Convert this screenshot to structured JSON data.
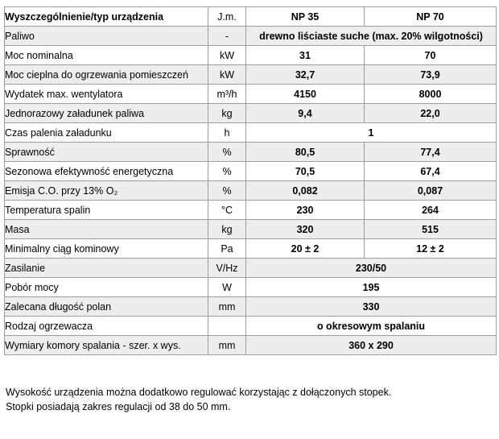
{
  "table": {
    "header": {
      "label": "Wyszczególnienie/typ urządzenia",
      "unit": "J.m.",
      "model1": "NP 35",
      "model2": "NP 70"
    },
    "rows": [
      {
        "label": "Paliwo",
        "unit": "-",
        "span": "drewno liściaste suche (max. 20% wilgotności)"
      },
      {
        "label": "Moc nominalna",
        "unit": "kW",
        "np35": "31",
        "np70": "70"
      },
      {
        "label": "Moc cieplna do ogrzewania pomieszczeń",
        "unit": "kW",
        "np35": "32,7",
        "np70": "73,9"
      },
      {
        "label": "Wydatek max. wentylatora",
        "unit": "m³/h",
        "np35": "4150",
        "np70": "8000"
      },
      {
        "label": "Jednorazowy załadunek paliwa",
        "unit": "kg",
        "np35": "9,4",
        "np70": "22,0"
      },
      {
        "label": "Czas palenia załadunku",
        "unit": "h",
        "span": "1"
      },
      {
        "label": "Sprawność",
        "unit": "%",
        "np35": "80,5",
        "np70": "77,4"
      },
      {
        "label": "Sezonowa efektywność energetyczna",
        "unit": "%",
        "np35": "70,5",
        "np70": "67,4"
      },
      {
        "label": "Emisja C.O. przy 13% O₂",
        "unit": "%",
        "np35": "0,082",
        "np70": "0,087"
      },
      {
        "label": "Temperatura spalin",
        "unit": "°C",
        "np35": "230",
        "np70": "264"
      },
      {
        "label": "Masa",
        "unit": "kg",
        "np35": "320",
        "np70": "515"
      },
      {
        "label": "Minimalny ciąg kominowy",
        "unit": "Pa",
        "np35": "20 ± 2",
        "np70": "12 ± 2"
      },
      {
        "label": "Zasilanie",
        "unit": "V/Hz",
        "span": "230/50"
      },
      {
        "label": "Pobór mocy",
        "unit": "W",
        "span": "195"
      },
      {
        "label": "Zalecana długość polan",
        "unit": "mm",
        "span": "330"
      },
      {
        "label": "Rodzaj ogrzewacza",
        "unit": "",
        "span": "o okresowym spalaniu"
      },
      {
        "label": "Wymiary komory spalania - szer. x wys.",
        "unit": "mm",
        "span": "360 x 290"
      }
    ]
  },
  "footnote": {
    "line1": "Wysokość urządzenia można dodatkowo regulować korzystając z dołączonych stopek.",
    "line2": "Stopki posiadają zakres regulacji od 38 do 50 mm."
  },
  "colors": {
    "row_stripe": "#ededed",
    "border": "#9d9d9d",
    "text": "#000000",
    "background": "#ffffff"
  }
}
